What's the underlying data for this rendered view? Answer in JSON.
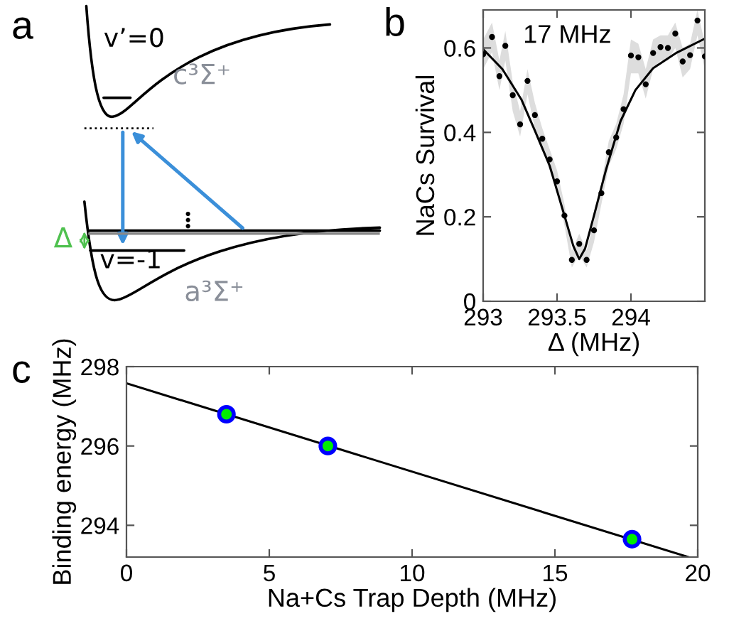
{
  "chart_data": [
    {
      "type": "other",
      "title": "a",
      "annotations": [
        "v’=0",
        "c³Σ⁺",
        "Δ",
        "v=-1",
        "a³Σ⁺"
      ]
    },
    {
      "type": "scatter",
      "title": "b",
      "xlabel": "Δ (MHz)",
      "ylabel": "NaCs Survival",
      "annotations": [
        "17 MHz"
      ],
      "xlim": [
        293,
        294.5
      ],
      "ylim": [
        0,
        0.69
      ],
      "xticks": [
        293,
        293.5,
        294
      ],
      "yticks": [
        0,
        0.2,
        0.4,
        0.6
      ],
      "series": [
        {
          "type": "scatter",
          "color": "#000000",
          "marker": "circle",
          "x": [
            293.0,
            293.06,
            293.11,
            293.15,
            293.2,
            293.25,
            293.3,
            293.35,
            293.4,
            293.45,
            293.5,
            293.55,
            293.6,
            293.65,
            293.7,
            293.75,
            293.8,
            293.85,
            293.9,
            293.95,
            294.0,
            294.05,
            294.1,
            294.15,
            294.2,
            294.25,
            294.3,
            294.35,
            294.4,
            294.45,
            294.5
          ],
          "values": [
            0.585,
            0.626,
            0.533,
            0.605,
            0.488,
            0.419,
            0.522,
            0.441,
            0.385,
            0.336,
            0.284,
            0.203,
            0.098,
            0.136,
            0.098,
            0.168,
            0.256,
            0.353,
            0.388,
            0.455,
            0.582,
            0.578,
            0.514,
            0.588,
            0.602,
            0.6,
            0.634,
            0.568,
            0.583,
            0.665,
            0.58
          ],
          "lower": [
            0.55,
            0.59,
            0.5,
            0.57,
            0.45,
            0.39,
            0.49,
            0.41,
            0.36,
            0.31,
            0.26,
            0.18,
            0.08,
            0.11,
            0.08,
            0.14,
            0.23,
            0.32,
            0.36,
            0.42,
            0.54,
            0.54,
            0.48,
            0.55,
            0.57,
            0.57,
            0.6,
            0.53,
            0.55,
            0.63,
            0.55
          ],
          "upper": [
            0.62,
            0.66,
            0.57,
            0.64,
            0.52,
            0.45,
            0.55,
            0.47,
            0.41,
            0.36,
            0.31,
            0.23,
            0.12,
            0.16,
            0.12,
            0.19,
            0.28,
            0.38,
            0.42,
            0.49,
            0.62,
            0.61,
            0.55,
            0.62,
            0.63,
            0.63,
            0.66,
            0.6,
            0.61,
            0.69,
            0.61
          ]
        },
        {
          "type": "line",
          "color": "#000000",
          "marker": "none",
          "line_style": "solid",
          "x": [
            293.0,
            293.13,
            293.26,
            293.35,
            293.45,
            293.545,
            293.61,
            293.65,
            293.69,
            293.75,
            293.83,
            293.93,
            294.03,
            294.15,
            294.31,
            294.5
          ],
          "values": [
            0.597,
            0.55,
            0.477,
            0.404,
            0.321,
            0.209,
            0.131,
            0.1,
            0.125,
            0.203,
            0.31,
            0.427,
            0.5,
            0.552,
            0.589,
            0.622
          ]
        }
      ]
    },
    {
      "type": "scatter",
      "title": "c",
      "xlabel": "Na+Cs Trap Depth (MHz)",
      "ylabel": "Binding energy (MHz)",
      "xlim": [
        0,
        20
      ],
      "ylim": [
        293.2,
        298
      ],
      "xticks": [
        0,
        5,
        10,
        15,
        20
      ],
      "yticks": [
        294,
        296,
        298
      ],
      "series": [
        {
          "type": "line",
          "color": "#000000",
          "marker": "none",
          "line_style": "solid",
          "x": [
            0,
            19.67
          ],
          "values": [
            297.58,
            293.2
          ]
        },
        {
          "type": "scatter",
          "color": "#00ee00",
          "marker": "circle",
          "x": [
            3.5,
            7.05,
            17.7
          ],
          "values": [
            296.8,
            296.0,
            293.65
          ]
        }
      ]
    }
  ]
}
